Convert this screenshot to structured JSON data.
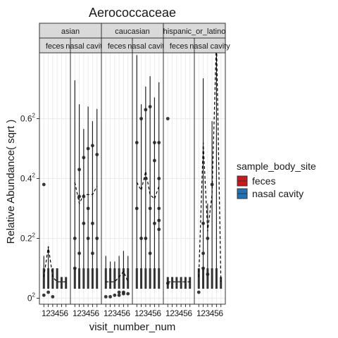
{
  "chart_data": {
    "type": "boxplot",
    "title": "Aerococcaceae",
    "xlabel": "visit_number_num",
    "ylabel": "Relative Abundance( sqrt )",
    "x_ticks": [
      "1",
      "2",
      "3",
      "4",
      "5",
      "6"
    ],
    "y_ticks": [
      {
        "value": 0,
        "base": "0",
        "exp": "2"
      },
      {
        "value": 0.2,
        "base": "0.2",
        "exp": "2"
      },
      {
        "value": 0.4,
        "base": "0.4",
        "exp": "2"
      },
      {
        "value": 0.6,
        "base": "0.6",
        "exp": "2"
      }
    ],
    "ylim": [
      -0.02,
      0.82
    ],
    "facet_rows": [
      "asian",
      "caucasian",
      "hispanic_or_latino"
    ],
    "facet_cols": [
      "feces",
      "nasal cavity"
    ],
    "legend": {
      "title": "sample_body_site",
      "position": "right",
      "items": [
        {
          "label": "feces",
          "color": "#cb181d"
        },
        {
          "label": "nasal cavity",
          "color": "#2171b5"
        }
      ]
    },
    "grid": true,
    "panels": [
      {
        "group": "asian",
        "site": "feces",
        "mean": [
          0.005,
          0.03,
          0.005,
          0.003,
          0.003,
          0.003
        ],
        "whisker_max": [
          0.02,
          0.03,
          0.01,
          0.01,
          0.005,
          0.005
        ],
        "outliers": [
          [
            1,
            0.38
          ],
          [
            2,
            0.02
          ],
          [
            1,
            0.01
          ],
          [
            3,
            0.005
          ]
        ]
      },
      {
        "group": "asian",
        "site": "nasal cavity",
        "mean": [
          0.15,
          0.1,
          0.12,
          0.12,
          0.12,
          0.14
        ],
        "whisker_max": [
          0.53,
          0.42,
          0.32,
          0.41,
          0.35,
          0.4
        ],
        "outliers": [
          [
            2,
            0.43
          ],
          [
            3,
            0.47
          ],
          [
            4,
            0.5
          ],
          [
            5,
            0.51
          ],
          [
            6,
            0.48
          ],
          [
            2,
            0.34
          ],
          [
            3,
            0.34
          ],
          [
            1,
            0.2
          ],
          [
            4,
            0.3
          ],
          [
            5,
            0.25
          ],
          [
            2,
            0.15
          ],
          [
            3,
            0.25
          ],
          [
            6,
            0.2
          ],
          [
            4,
            0.2
          ],
          [
            5,
            0.15
          ],
          [
            1,
            0.1
          ]
        ]
      },
      {
        "group": "caucasian",
        "site": "feces",
        "mean": [
          0.003,
          0.003,
          0.003,
          0.005,
          0.008,
          0.003
        ],
        "whisker_max": [
          0.02,
          0.015,
          0.015,
          0.02,
          0.025,
          0.02
        ],
        "outliers": [
          [
            1,
            0.005
          ],
          [
            2,
            0.005
          ],
          [
            3,
            0.01
          ],
          [
            4,
            0.01
          ],
          [
            5,
            0.015
          ],
          [
            6,
            0.015
          ],
          [
            4,
            0.02
          ],
          [
            5,
            0.02
          ]
        ]
      },
      {
        "group": "caucasian",
        "site": "nasal cavity",
        "mean": [
          0.15,
          0.13,
          0.18,
          0.12,
          0.11,
          0.14
        ],
        "whisker_max": [
          0.66,
          0.42,
          0.5,
          0.55,
          0.45,
          0.52
        ],
        "outliers": [
          [
            2,
            0.6
          ],
          [
            3,
            0.63
          ],
          [
            4,
            0.64
          ],
          [
            1,
            0.52
          ],
          [
            5,
            0.52
          ],
          [
            6,
            0.52
          ],
          [
            3,
            0.4
          ],
          [
            5,
            0.46
          ],
          [
            6,
            0.4
          ],
          [
            6,
            0.3
          ],
          [
            6,
            0.26
          ],
          [
            6,
            0.23
          ],
          [
            4,
            0.3
          ],
          [
            2,
            0.2
          ],
          [
            3,
            0.2
          ],
          [
            5,
            0.25
          ],
          [
            1,
            0.3
          ],
          [
            4,
            0.15
          ]
        ]
      },
      {
        "group": "hispanic_or_latino",
        "site": "feces",
        "mean": [
          0.003,
          0.003,
          0.003,
          0.003,
          0.003,
          0.003
        ],
        "whisker_max": [
          0.005,
          0.005,
          0.005,
          0.005,
          0.005,
          0.005
        ],
        "outliers": [
          [
            1,
            0.6
          ],
          [
            1,
            0.05
          ]
        ]
      },
      {
        "group": "hispanic_or_latino",
        "site": "nasal cavity",
        "mean": [
          0.005,
          0.27,
          0.05,
          0.12,
          0.76,
          0.003
        ],
        "whisker_max": [
          0.01,
          0.54,
          0.1,
          0.35,
          0.76,
          0.005
        ],
        "outliers": [
          [
            2,
            0.25
          ],
          [
            3,
            0.2
          ],
          [
            4,
            0.38
          ],
          [
            1,
            0.02
          ],
          [
            2,
            0.15
          ],
          [
            3,
            0.08
          ],
          [
            2,
            0.1
          ]
        ]
      }
    ]
  }
}
